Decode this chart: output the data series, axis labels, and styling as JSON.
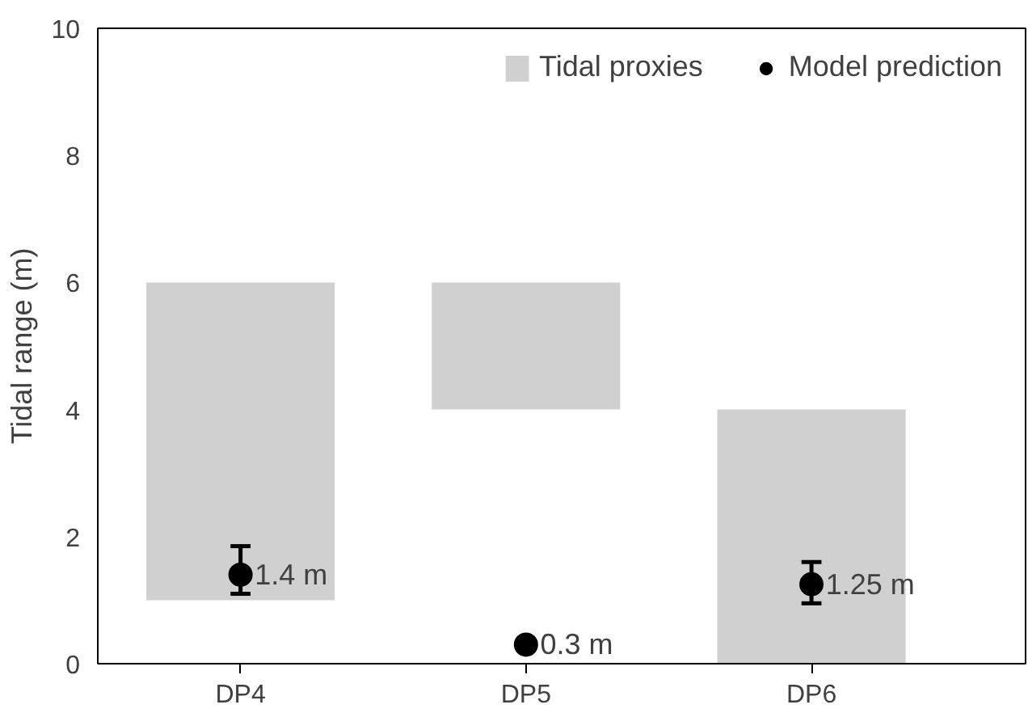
{
  "chart_data": {
    "type": "bar",
    "ylabel": "Tidal range (m)",
    "categories": [
      "DP4",
      "DP5",
      "DP6"
    ],
    "series": [
      {
        "name": "Tidal proxies",
        "color": "#d0d0d0",
        "base": [
          1,
          4,
          0
        ],
        "values": [
          5,
          2,
          4
        ]
      },
      {
        "name": "Model prediction",
        "type": "scatter",
        "color": "#000000",
        "x": [
          "DP4",
          "DP5",
          "DP6"
        ],
        "values": [
          1.4,
          0.3,
          1.25
        ],
        "errors": [
          [
            1.1,
            1.85
          ],
          null,
          [
            0.95,
            1.6
          ]
        ],
        "value_labels": [
          "1.4 m",
          "0.3 m",
          "1.25 m"
        ]
      }
    ],
    "ylim": [
      0,
      10
    ],
    "yticks": [
      0,
      2,
      4,
      6,
      8,
      10
    ],
    "grid": false,
    "legend": "top right",
    "marker": "circle"
  }
}
